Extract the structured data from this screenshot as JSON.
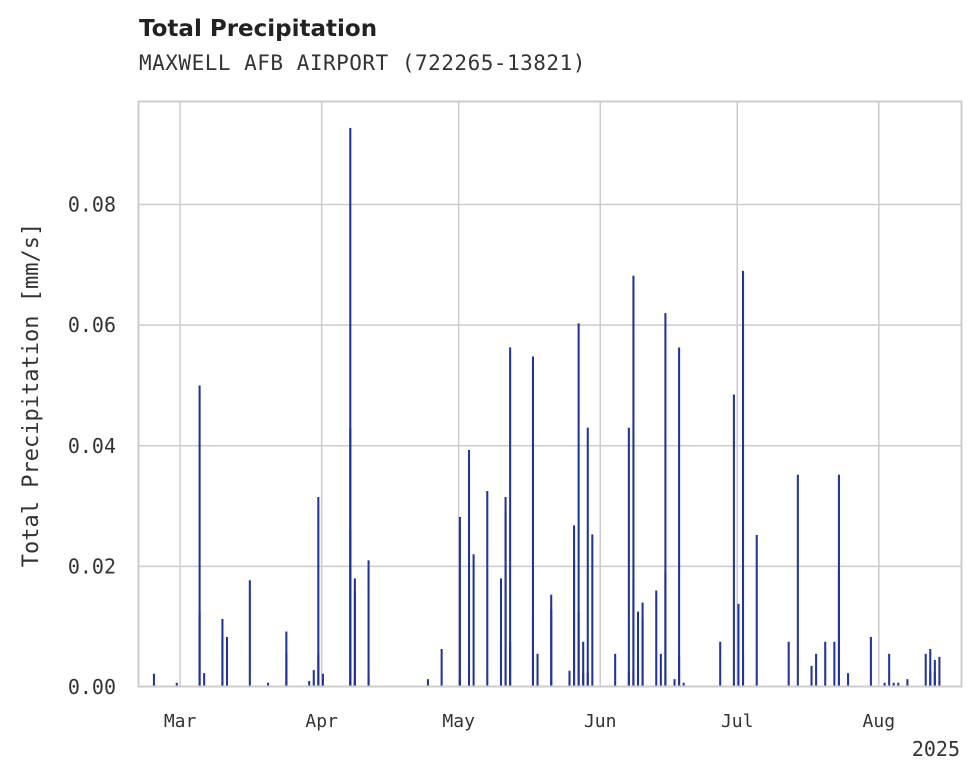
{
  "chart_data": {
    "type": "bar",
    "title": "Total Precipitation",
    "subtitle": "MAXWELL AFB AIRPORT (722265-13821)",
    "xlabel": "",
    "ylabel": "Total Precipitation [mm/s]",
    "year_label": "2025",
    "x_range": [
      "2025-02-20",
      "2025-08-19"
    ],
    "ylim": [
      0,
      0.097
    ],
    "yticks": [
      "0.00",
      "0.02",
      "0.04",
      "0.06",
      "0.08"
    ],
    "ytick_values": [
      0,
      0.02,
      0.04,
      0.06,
      0.08
    ],
    "xticks": [
      {
        "label": "Mar",
        "date": "2025-03-01"
      },
      {
        "label": "Apr",
        "date": "2025-04-01"
      },
      {
        "label": "May",
        "date": "2025-05-01"
      },
      {
        "label": "Jun",
        "date": "2025-06-01"
      },
      {
        "label": "Jul",
        "date": "2025-07-01"
      },
      {
        "label": "Aug",
        "date": "2025-08-01"
      }
    ],
    "grid": true,
    "bar_color": "#22339a",
    "series": [
      {
        "points": [
          [
            "2025-02-23",
            0.0022
          ],
          [
            "2025-02-28",
            0.0007
          ],
          [
            "2025-03-05",
            0.0125
          ],
          [
            "2025-03-05",
            0.05
          ],
          [
            "2025-03-06",
            0.0023
          ],
          [
            "2025-03-10",
            0.0083
          ],
          [
            "2025-03-10",
            0.0113
          ],
          [
            "2025-03-11",
            0.0083
          ],
          [
            "2025-03-16",
            0.0177
          ],
          [
            "2025-03-20",
            0.0007
          ],
          [
            "2025-03-24",
            0.0092
          ],
          [
            "2025-03-24",
            0.0055
          ],
          [
            "2025-03-29",
            0.001
          ],
          [
            "2025-03-30",
            0.0028
          ],
          [
            "2025-03-31",
            0.0055
          ],
          [
            "2025-03-31",
            0.0315
          ],
          [
            "2025-04-01",
            0.0022
          ],
          [
            "2025-04-07",
            0.0927
          ],
          [
            "2025-04-07",
            0.043
          ],
          [
            "2025-04-07",
            0.026
          ],
          [
            "2025-04-08",
            0.018
          ],
          [
            "2025-04-08",
            0.016
          ],
          [
            "2025-04-08",
            0.0012
          ],
          [
            "2025-04-11",
            0.021
          ],
          [
            "2025-04-11",
            0.0018
          ],
          [
            "2025-04-24",
            0.0013
          ],
          [
            "2025-04-27",
            0.0063
          ],
          [
            "2025-05-01",
            0.0013
          ],
          [
            "2025-05-01",
            0.0282
          ],
          [
            "2025-05-03",
            0.0393
          ],
          [
            "2025-05-04",
            0.022
          ],
          [
            "2025-05-07",
            0.0325
          ],
          [
            "2025-05-10",
            0.0075
          ],
          [
            "2025-05-10",
            0.018
          ],
          [
            "2025-05-11",
            0.0315
          ],
          [
            "2025-05-11",
            0.029
          ],
          [
            "2025-05-12",
            0.0563
          ],
          [
            "2025-05-12",
            0.0075
          ],
          [
            "2025-05-17",
            0.0548
          ],
          [
            "2025-05-17",
            0.012
          ],
          [
            "2025-05-18",
            0.0055
          ],
          [
            "2025-05-21",
            0.0153
          ],
          [
            "2025-05-21",
            0.0128
          ],
          [
            "2025-05-25",
            0.0013
          ],
          [
            "2025-05-25",
            0.0027
          ],
          [
            "2025-05-26",
            0.0268
          ],
          [
            "2025-05-26",
            0.021
          ],
          [
            "2025-05-27",
            0.0603
          ],
          [
            "2025-05-27",
            0.0125
          ],
          [
            "2025-05-28",
            0.0075
          ],
          [
            "2025-05-28",
            0.0023
          ],
          [
            "2025-05-29",
            0.043
          ],
          [
            "2025-05-29",
            0.0023
          ],
          [
            "2025-05-30",
            0.0253
          ],
          [
            "2025-06-04",
            0.0055
          ],
          [
            "2025-06-07",
            0.043
          ],
          [
            "2025-06-07",
            0.0025
          ],
          [
            "2025-06-08",
            0.0028
          ],
          [
            "2025-06-08",
            0.0682
          ],
          [
            "2025-06-08",
            0.018
          ],
          [
            "2025-06-09",
            0.0038
          ],
          [
            "2025-06-09",
            0.0125
          ],
          [
            "2025-06-10",
            0.0113
          ],
          [
            "2025-06-10",
            0.014
          ],
          [
            "2025-06-13",
            0.016
          ],
          [
            "2025-06-14",
            0.0055
          ],
          [
            "2025-06-15",
            0.019
          ],
          [
            "2025-06-15",
            0.062
          ],
          [
            "2025-06-17",
            0.0013
          ],
          [
            "2025-06-18",
            0.0563
          ],
          [
            "2025-06-18",
            0.005
          ],
          [
            "2025-06-19",
            0.0007
          ],
          [
            "2025-06-27",
            0.0075
          ],
          [
            "2025-06-30",
            0.0007
          ],
          [
            "2025-06-30",
            0.0485
          ],
          [
            "2025-07-01",
            0.0138
          ],
          [
            "2025-07-02",
            0.069
          ],
          [
            "2025-07-02",
            0.0055
          ],
          [
            "2025-07-05",
            0.0252
          ],
          [
            "2025-07-12",
            0.0075
          ],
          [
            "2025-07-14",
            0.0352
          ],
          [
            "2025-07-17",
            0.0035
          ],
          [
            "2025-07-18",
            0.0055
          ],
          [
            "2025-07-20",
            0.0075
          ],
          [
            "2025-07-22",
            0.0075
          ],
          [
            "2025-07-23",
            0.0352
          ],
          [
            "2025-07-23",
            0.0193
          ],
          [
            "2025-07-25",
            0.0023
          ],
          [
            "2025-07-30",
            0.0083
          ],
          [
            "2025-08-02",
            0.0007
          ],
          [
            "2025-08-03",
            0.0055
          ],
          [
            "2025-08-04",
            0.0007
          ],
          [
            "2025-08-05",
            0.0007
          ],
          [
            "2025-08-07",
            0.0013
          ],
          [
            "2025-08-11",
            0.0055
          ],
          [
            "2025-08-12",
            0.0063
          ],
          [
            "2025-08-12",
            0.0028
          ],
          [
            "2025-08-13",
            0.0045
          ],
          [
            "2025-08-13",
            0.0025
          ],
          [
            "2025-08-14",
            0.005
          ]
        ]
      }
    ]
  }
}
